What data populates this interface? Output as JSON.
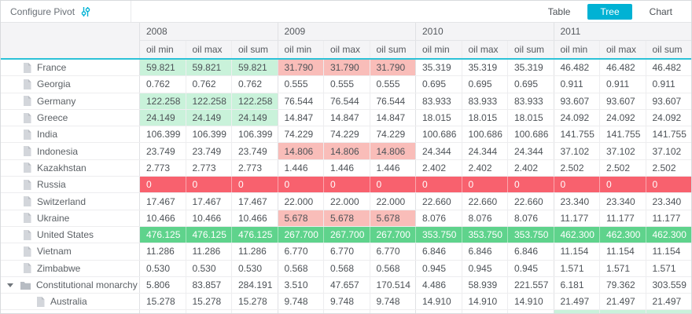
{
  "toolbar": {
    "configure_label": "Configure Pivot",
    "views": {
      "table": "Table",
      "tree": "Tree",
      "chart": "Chart",
      "active": "Tree"
    }
  },
  "colors": {
    "accent": "#00b2d4",
    "line": "#2cc2d8",
    "gl": "#c9f2da",
    "pk": "#f9bdb9",
    "rd": "#f8616e",
    "gn": "#5fd38c"
  },
  "table": {
    "years": [
      "2008",
      "2009",
      "2010",
      "2011"
    ],
    "measures": [
      "oil min",
      "oil max",
      "oil sum"
    ],
    "rows": [
      {
        "label": "France",
        "icon": "file",
        "indent": 0,
        "expander": false,
        "values": [
          "59.821",
          "59.821",
          "59.821",
          "31.790",
          "31.790",
          "31.790",
          "35.319",
          "35.319",
          "35.319",
          "46.482",
          "46.482",
          "46.482"
        ],
        "styles": [
          "gl",
          "gl",
          "gl",
          "pk",
          "pk",
          "pk",
          "",
          "",
          "",
          "",
          "",
          ""
        ]
      },
      {
        "label": "Georgia",
        "icon": "file",
        "indent": 0,
        "expander": false,
        "values": [
          "0.762",
          "0.762",
          "0.762",
          "0.555",
          "0.555",
          "0.555",
          "0.695",
          "0.695",
          "0.695",
          "0.911",
          "0.911",
          "0.911"
        ],
        "styles": [
          "",
          "",
          "",
          "",
          "",
          "",
          "",
          "",
          "",
          "",
          "",
          ""
        ]
      },
      {
        "label": "Germany",
        "icon": "file",
        "indent": 0,
        "expander": false,
        "values": [
          "122.258",
          "122.258",
          "122.258",
          "76.544",
          "76.544",
          "76.544",
          "83.933",
          "83.933",
          "83.933",
          "93.607",
          "93.607",
          "93.607"
        ],
        "styles": [
          "gl",
          "gl",
          "gl",
          "",
          "",
          "",
          "",
          "",
          "",
          "",
          "",
          ""
        ]
      },
      {
        "label": "Greece",
        "icon": "file",
        "indent": 0,
        "expander": false,
        "values": [
          "24.149",
          "24.149",
          "24.149",
          "14.847",
          "14.847",
          "14.847",
          "18.015",
          "18.015",
          "18.015",
          "24.092",
          "24.092",
          "24.092"
        ],
        "styles": [
          "gl",
          "gl",
          "gl",
          "",
          "",
          "",
          "",
          "",
          "",
          "",
          "",
          ""
        ]
      },
      {
        "label": "India",
        "icon": "file",
        "indent": 0,
        "expander": false,
        "values": [
          "106.399",
          "106.399",
          "106.399",
          "74.229",
          "74.229",
          "74.229",
          "100.686",
          "100.686",
          "100.686",
          "141.755",
          "141.755",
          "141.755"
        ],
        "styles": [
          "",
          "",
          "",
          "",
          "",
          "",
          "",
          "",
          "",
          "",
          "",
          ""
        ]
      },
      {
        "label": "Indonesia",
        "icon": "file",
        "indent": 0,
        "expander": false,
        "values": [
          "23.749",
          "23.749",
          "23.749",
          "14.806",
          "14.806",
          "14.806",
          "24.344",
          "24.344",
          "24.344",
          "37.102",
          "37.102",
          "37.102"
        ],
        "styles": [
          "",
          "",
          "",
          "pk",
          "pk",
          "pk",
          "",
          "",
          "",
          "",
          "",
          ""
        ]
      },
      {
        "label": "Kazakhstan",
        "icon": "file",
        "indent": 0,
        "expander": false,
        "values": [
          "2.773",
          "2.773",
          "2.773",
          "1.446",
          "1.446",
          "1.446",
          "2.402",
          "2.402",
          "2.402",
          "2.502",
          "2.502",
          "2.502"
        ],
        "styles": [
          "",
          "",
          "",
          "",
          "",
          "",
          "",
          "",
          "",
          "",
          "",
          ""
        ]
      },
      {
        "label": "Russia",
        "icon": "file",
        "indent": 0,
        "expander": false,
        "values": [
          "0",
          "0",
          "0",
          "0",
          "0",
          "0",
          "0",
          "0",
          "0",
          "0",
          "0",
          "0"
        ],
        "styles": [
          "rd",
          "rd",
          "rd",
          "rd",
          "rd",
          "rd",
          "rd",
          "rd",
          "rd",
          "rd",
          "rd",
          "rd"
        ]
      },
      {
        "label": "Switzerland",
        "icon": "file",
        "indent": 0,
        "expander": false,
        "values": [
          "17.467",
          "17.467",
          "17.467",
          "22.000",
          "22.000",
          "22.000",
          "22.660",
          "22.660",
          "22.660",
          "23.340",
          "23.340",
          "23.340"
        ],
        "styles": [
          "",
          "",
          "",
          "",
          "",
          "",
          "",
          "",
          "",
          "",
          "",
          ""
        ]
      },
      {
        "label": "Ukraine",
        "icon": "file",
        "indent": 0,
        "expander": false,
        "values": [
          "10.466",
          "10.466",
          "10.466",
          "5.678",
          "5.678",
          "5.678",
          "8.076",
          "8.076",
          "8.076",
          "11.177",
          "11.177",
          "11.177"
        ],
        "styles": [
          "",
          "",
          "",
          "pk",
          "pk",
          "pk",
          "",
          "",
          "",
          "",
          "",
          ""
        ]
      },
      {
        "label": "United States",
        "icon": "file",
        "indent": 0,
        "expander": false,
        "values": [
          "476.125",
          "476.125",
          "476.125",
          "267.700",
          "267.700",
          "267.700",
          "353.750",
          "353.750",
          "353.750",
          "462.300",
          "462.300",
          "462.300"
        ],
        "styles": [
          "gn",
          "gn",
          "gn",
          "gn",
          "gn",
          "gn",
          "gn",
          "gn",
          "gn",
          "gn",
          "gn",
          "gn"
        ]
      },
      {
        "label": "Vietnam",
        "icon": "file",
        "indent": 0,
        "expander": false,
        "values": [
          "11.286",
          "11.286",
          "11.286",
          "6.770",
          "6.770",
          "6.770",
          "6.846",
          "6.846",
          "6.846",
          "11.154",
          "11.154",
          "11.154"
        ],
        "styles": [
          "",
          "",
          "",
          "",
          "",
          "",
          "",
          "",
          "",
          "",
          "",
          ""
        ]
      },
      {
        "label": "Zimbabwe",
        "icon": "file",
        "indent": 0,
        "expander": false,
        "values": [
          "0.530",
          "0.530",
          "0.530",
          "0.568",
          "0.568",
          "0.568",
          "0.945",
          "0.945",
          "0.945",
          "1.571",
          "1.571",
          "1.571"
        ],
        "styles": [
          "",
          "",
          "",
          "",
          "",
          "",
          "",
          "",
          "",
          "",
          "",
          ""
        ]
      },
      {
        "label": "Constitutional monarchy",
        "icon": "folder",
        "indent": 0,
        "expander": true,
        "values": [
          "5.806",
          "83.857",
          "284.191",
          "3.510",
          "47.657",
          "170.514",
          "4.486",
          "58.939",
          "221.557",
          "6.181",
          "79.362",
          "303.559"
        ],
        "styles": [
          "",
          "",
          "",
          "",
          "",
          "",
          "",
          "",
          "",
          "",
          "",
          ""
        ]
      },
      {
        "label": "Australia",
        "icon": "file",
        "indent": 1,
        "expander": false,
        "values": [
          "15.278",
          "15.278",
          "15.278",
          "9.748",
          "9.748",
          "9.748",
          "14.910",
          "14.910",
          "14.910",
          "21.497",
          "21.497",
          "21.497"
        ],
        "styles": [
          "",
          "",
          "",
          "",
          "",
          "",
          "",
          "",
          "",
          "",
          "",
          ""
        ]
      },
      {
        "label": "",
        "icon": "",
        "indent": 0,
        "expander": false,
        "values": [
          "",
          "",
          "",
          "",
          "",
          "",
          "",
          "",
          "",
          "",
          "",
          ""
        ],
        "styles": [
          "",
          "",
          "",
          "",
          "",
          "",
          "",
          "",
          "",
          "gl",
          "gl",
          "gl"
        ]
      }
    ]
  }
}
